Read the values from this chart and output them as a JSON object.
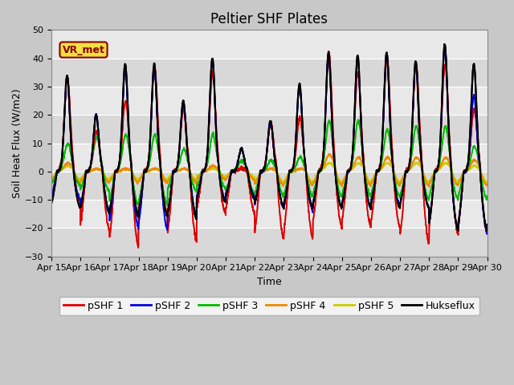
{
  "title": "Peltier SHF Plates",
  "xlabel": "Time",
  "ylabel": "Soil Heat Flux (W/m2)",
  "ylim": [
    -30,
    50
  ],
  "xtick_labels": [
    "Apr 15",
    "Apr 16",
    "Apr 17",
    "Apr 18",
    "Apr 19",
    "Apr 20",
    "Apr 21",
    "Apr 22",
    "Apr 23",
    "Apr 24",
    "Apr 25",
    "Apr 26",
    "Apr 27",
    "Apr 28",
    "Apr 29",
    "Apr 30"
  ],
  "series_colors": {
    "pSHF 1": "#dd0000",
    "pSHF 2": "#0000dd",
    "pSHF 3": "#00bb00",
    "pSHF 4": "#ee8800",
    "pSHF 5": "#cccc00",
    "Hukseflux": "#000000"
  },
  "series_widths": {
    "pSHF 1": 1.2,
    "pSHF 2": 1.2,
    "pSHF 3": 1.2,
    "pSHF 4": 1.2,
    "pSHF 5": 1.2,
    "Hukseflux": 1.5
  },
  "annotation_text": "VR_met",
  "fig_bg": "#c8c8c8",
  "plot_bg": "#e0e0e0",
  "grid_color": "#ffffff",
  "title_fontsize": 12,
  "axis_fontsize": 9,
  "tick_fontsize": 8,
  "legend_fontsize": 9
}
